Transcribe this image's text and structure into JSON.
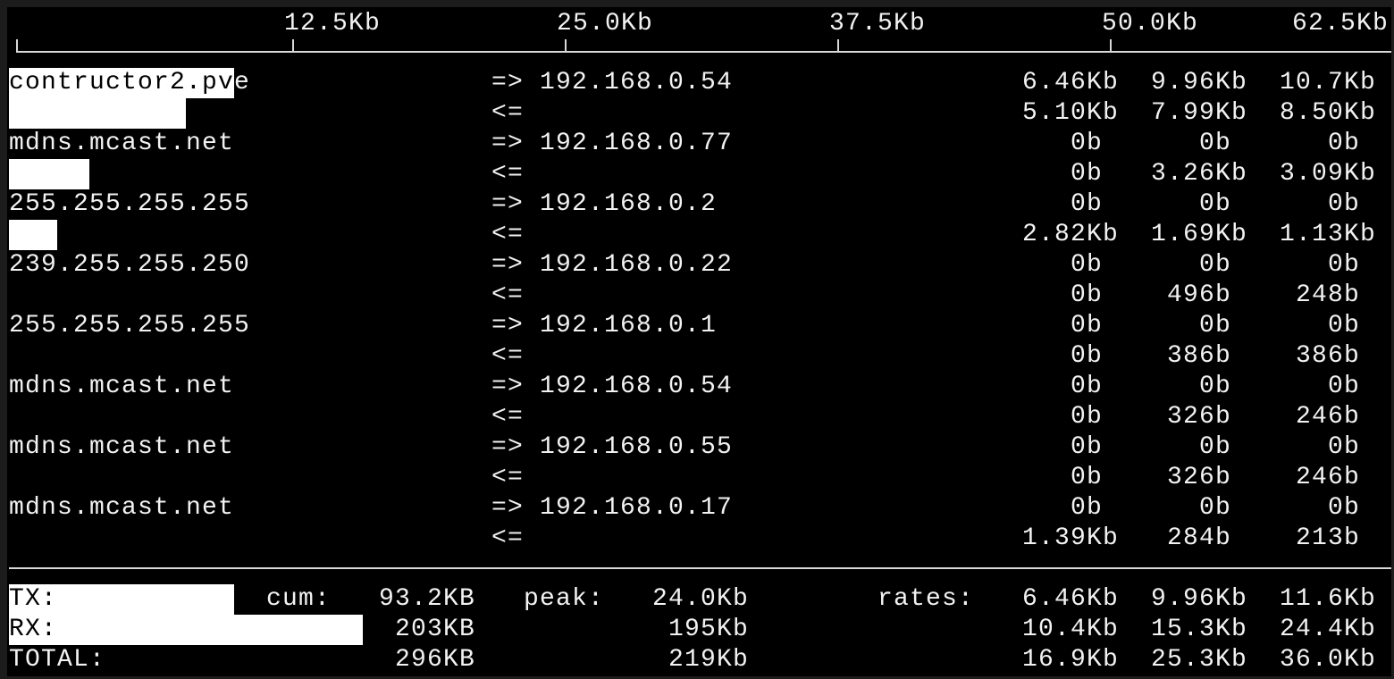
{
  "scale": {
    "max_kb": 62.5,
    "ticks": [
      "12.5Kb",
      "25.0Kb",
      "37.5Kb",
      "50.0Kb",
      "62.5Kb"
    ]
  },
  "hosts": [
    {
      "host": "contructor2.pve",
      "peer": "192.168.0.54",
      "tx": [
        "6.46Kb",
        "9.96Kb",
        "10.7Kb"
      ],
      "rx": [
        "5.10Kb",
        "7.99Kb",
        "8.50Kb"
      ],
      "tx_bar_kb": 9.96,
      "rx_bar_kb": 7.99
    },
    {
      "host": "mdns.mcast.net",
      "peer": "192.168.0.77",
      "tx": [
        "0b",
        "0b",
        "0b"
      ],
      "rx": [
        "0b",
        "3.26Kb",
        "3.09Kb"
      ],
      "tx_bar_kb": 0,
      "rx_bar_kb": 3.26
    },
    {
      "host": "255.255.255.255",
      "peer": "192.168.0.2",
      "tx": [
        "0b",
        "0b",
        "0b"
      ],
      "rx": [
        "2.82Kb",
        "1.69Kb",
        "1.13Kb"
      ],
      "tx_bar_kb": 0,
      "rx_bar_kb": 1.69
    },
    {
      "host": "239.255.255.250",
      "peer": "192.168.0.22",
      "tx": [
        "0b",
        "0b",
        "0b"
      ],
      "rx": [
        "0b",
        "496b",
        "248b"
      ],
      "tx_bar_kb": 0,
      "rx_bar_kb": 0
    },
    {
      "host": "255.255.255.255",
      "peer": "192.168.0.1",
      "tx": [
        "0b",
        "0b",
        "0b"
      ],
      "rx": [
        "0b",
        "386b",
        "386b"
      ],
      "tx_bar_kb": 0,
      "rx_bar_kb": 0
    },
    {
      "host": "mdns.mcast.net",
      "peer": "192.168.0.54",
      "tx": [
        "0b",
        "0b",
        "0b"
      ],
      "rx": [
        "0b",
        "326b",
        "246b"
      ],
      "tx_bar_kb": 0,
      "rx_bar_kb": 0
    },
    {
      "host": "mdns.mcast.net",
      "peer": "192.168.0.55",
      "tx": [
        "0b",
        "0b",
        "0b"
      ],
      "rx": [
        "0b",
        "326b",
        "246b"
      ],
      "tx_bar_kb": 0,
      "rx_bar_kb": 0
    },
    {
      "host": "mdns.mcast.net",
      "peer": "192.168.0.17",
      "tx": [
        "0b",
        "0b",
        "0b"
      ],
      "rx": [
        "1.39Kb",
        "284b",
        "213b"
      ],
      "tx_bar_kb": 0,
      "rx_bar_kb": 0
    }
  ],
  "arrows": {
    "tx": "=>",
    "rx": "<="
  },
  "totals": {
    "cum_label": "cum:",
    "peak_label": "peak:",
    "rates_label": "rates:",
    "rows": [
      {
        "label": "TX:",
        "cum": "93.2KB",
        "peak": "24.0Kb",
        "rates": [
          "6.46Kb",
          "9.96Kb",
          "11.6Kb"
        ],
        "bar_kb": 9.96
      },
      {
        "label": "RX:",
        "cum": "203KB",
        "peak": "195Kb",
        "rates": [
          "10.4Kb",
          "15.3Kb",
          "24.4Kb"
        ],
        "bar_kb": 15.3
      },
      {
        "label": "TOTAL:",
        "cum": "296KB",
        "peak": "219Kb",
        "rates": [
          "16.9Kb",
          "25.3Kb",
          "36.0Kb"
        ],
        "bar_kb": 0
      }
    ]
  }
}
